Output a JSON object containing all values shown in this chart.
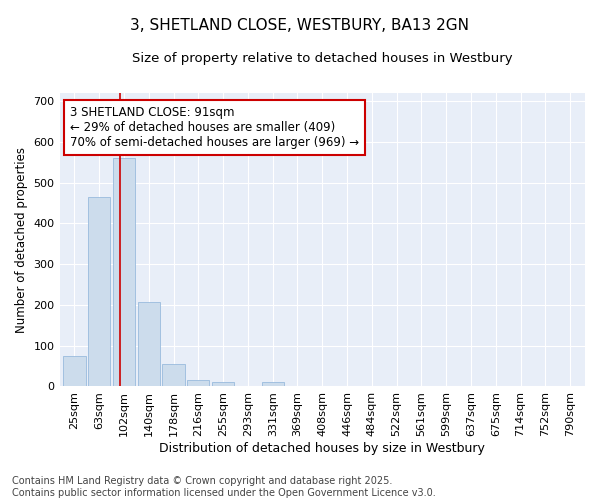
{
  "title1": "3, SHETLAND CLOSE, WESTBURY, BA13 2GN",
  "title2": "Size of property relative to detached houses in Westbury",
  "xlabel": "Distribution of detached houses by size in Westbury",
  "ylabel": "Number of detached properties",
  "categories": [
    "25sqm",
    "63sqm",
    "102sqm",
    "140sqm",
    "178sqm",
    "216sqm",
    "255sqm",
    "293sqm",
    "331sqm",
    "369sqm",
    "408sqm",
    "446sqm",
    "484sqm",
    "522sqm",
    "561sqm",
    "599sqm",
    "637sqm",
    "675sqm",
    "714sqm",
    "752sqm",
    "790sqm"
  ],
  "values": [
    75,
    465,
    560,
    207,
    55,
    15,
    10,
    0,
    10,
    0,
    0,
    0,
    0,
    0,
    0,
    0,
    0,
    0,
    0,
    0,
    0
  ],
  "bar_color": "#ccdcec",
  "bar_edge_color": "#99bbdd",
  "plot_bg_color": "#e8eef8",
  "fig_bg_color": "#ffffff",
  "grid_color": "#ffffff",
  "redline_x": 1.85,
  "redline_color": "#cc0000",
  "annotation_text": "3 SHETLAND CLOSE: 91sqm\n← 29% of detached houses are smaller (409)\n70% of semi-detached houses are larger (969) →",
  "annotation_box_facecolor": "#ffffff",
  "annotation_box_edgecolor": "#cc0000",
  "ylim": [
    0,
    720
  ],
  "yticks": [
    0,
    100,
    200,
    300,
    400,
    500,
    600,
    700
  ],
  "footer": "Contains HM Land Registry data © Crown copyright and database right 2025.\nContains public sector information licensed under the Open Government Licence v3.0.",
  "title1_fontsize": 11,
  "title2_fontsize": 9.5,
  "xlabel_fontsize": 9,
  "ylabel_fontsize": 8.5,
  "tick_fontsize": 8,
  "annotation_fontsize": 8.5,
  "footer_fontsize": 7
}
